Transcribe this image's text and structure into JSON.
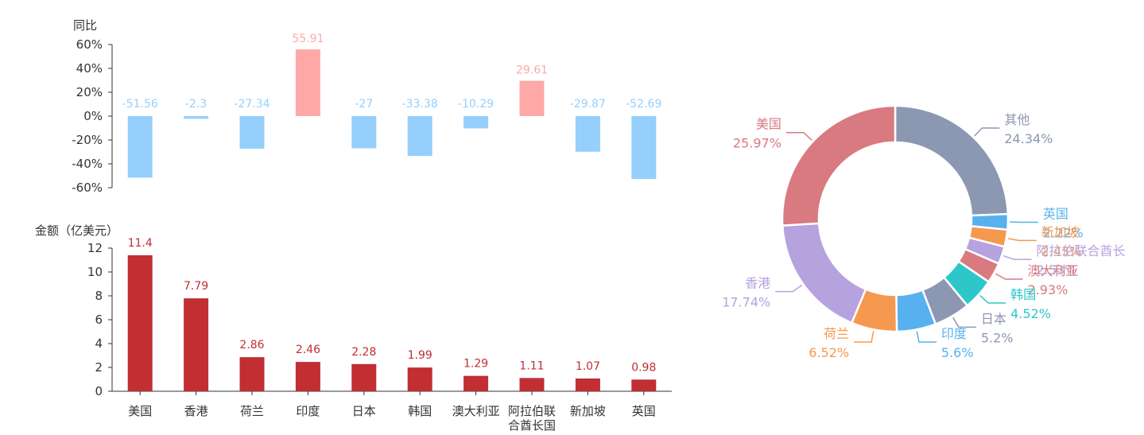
{
  "chart_data": [
    {
      "type": "bar",
      "ylabel": "同比",
      "unit": "%",
      "ylim": [
        -60,
        60
      ],
      "yticks": [
        60,
        40,
        20,
        0,
        -20,
        -40,
        -60
      ],
      "categories": [
        "美国",
        "香港",
        "荷兰",
        "印度",
        "日本",
        "韩国",
        "澳大利亚",
        "阿拉伯联合酋长国",
        "新加坡",
        "英国"
      ],
      "values": [
        -51.56,
        -2.3,
        -27.34,
        55.91,
        -27,
        -33.38,
        -10.29,
        29.61,
        -29.87,
        -52.69
      ],
      "value_labels": [
        "-51.56",
        "-2.3",
        "-27.34",
        "55.91",
        "-27",
        "-33.38",
        "-10.29",
        "29.61",
        "-29.87",
        "-52.69"
      ],
      "colors": {
        "positive": "#ffa8a8",
        "negative": "#95d0fc"
      }
    },
    {
      "type": "bar",
      "ylabel": "金额（亿美元）",
      "ylim": [
        0,
        12
      ],
      "yticks": [
        12,
        10,
        8,
        6,
        4,
        2,
        0
      ],
      "categories": [
        "美国",
        "香港",
        "荷兰",
        "印度",
        "日本",
        "韩国",
        "澳大利亚",
        "阿拉伯联合酋长国",
        "新加坡",
        "英国"
      ],
      "category_labels": [
        [
          "美国"
        ],
        [
          "香港"
        ],
        [
          "荷兰"
        ],
        [
          "印度"
        ],
        [
          "日本"
        ],
        [
          "韩国"
        ],
        [
          "澳大利亚"
        ],
        [
          "阿拉伯联",
          "合酋长国"
        ],
        [
          "新加坡"
        ],
        [
          "英国"
        ]
      ],
      "values": [
        11.4,
        7.79,
        2.86,
        2.46,
        2.28,
        1.99,
        1.29,
        1.11,
        1.07,
        0.98
      ],
      "value_labels": [
        "11.4",
        "7.79",
        "2.86",
        "2.46",
        "2.28",
        "1.99",
        "1.29",
        "1.11",
        "1.07",
        "0.98"
      ],
      "color": "#c12e34"
    },
    {
      "type": "pie",
      "donut": true,
      "slices": [
        {
          "name": "其他",
          "display_name": "其他",
          "value": 24.34,
          "label": "24.34%",
          "color": "#8c97b2"
        },
        {
          "name": "英国",
          "display_name": "英国",
          "value": 2.22,
          "label": "2.22%",
          "color": "#56b1ee"
        },
        {
          "name": "新加坡",
          "display_name": "新加坡",
          "value": 2.43,
          "label": "2.43%",
          "color": "#f5994e"
        },
        {
          "name": "阿拉伯联合酋长国",
          "display_name": "阿拉伯联合酋长",
          "value": 2.53,
          "label": "2.53%",
          "color": "#b6a2de"
        },
        {
          "name": "澳大利亚",
          "display_name": "澳大利亚",
          "value": 2.93,
          "label": "2.93%",
          "color": "#d87a80"
        },
        {
          "name": "韩国",
          "display_name": "韩国",
          "value": 4.52,
          "label": "4.52%",
          "color": "#2ec7c9"
        },
        {
          "name": "日本",
          "display_name": "日本",
          "value": 5.2,
          "label": "5.2%",
          "color": "#8c97b2"
        },
        {
          "name": "印度",
          "display_name": "印度",
          "value": 5.6,
          "label": "5.6%",
          "color": "#56b1ee"
        },
        {
          "name": "荷兰",
          "display_name": "荷兰",
          "value": 6.52,
          "label": "6.52%",
          "color": "#f5994e"
        },
        {
          "name": "香港",
          "display_name": "香港",
          "value": 17.74,
          "label": "17.74%",
          "color": "#b6a2de"
        },
        {
          "name": "美国",
          "display_name": "美国",
          "value": 25.97,
          "label": "25.97%",
          "color": "#d87a80"
        }
      ]
    }
  ]
}
